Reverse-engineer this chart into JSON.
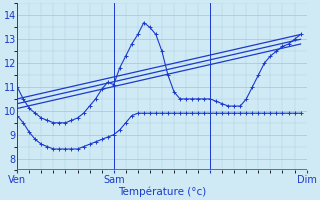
{
  "xlabel": "Température (°c)",
  "ylim": [
    7.5,
    14.5
  ],
  "xlim": [
    0,
    48
  ],
  "yticks": [
    8,
    9,
    10,
    11,
    12,
    13,
    14
  ],
  "xtick_positions": [
    0,
    16,
    32,
    48
  ],
  "xtick_labels": [
    "Ven",
    "Sam",
    "",
    "Dim"
  ],
  "vline_positions": [
    0,
    16,
    32
  ],
  "background_color": "#d0eaf5",
  "grid_color": "#b8d8e8",
  "line_color": "#1a3acc",
  "series": [
    {
      "x": [
        0,
        1,
        2,
        3,
        4,
        5,
        6,
        7,
        8,
        9,
        10,
        11,
        12,
        13,
        14,
        15,
        16,
        17,
        18,
        19,
        20,
        21,
        22,
        23,
        24,
        25,
        26,
        27,
        28,
        29,
        30,
        31,
        32,
        33,
        34,
        35,
        36,
        37,
        38,
        39,
        40,
        41,
        42,
        43,
        44,
        45,
        46,
        47
      ],
      "y": [
        9.8,
        9.5,
        9.1,
        8.8,
        8.6,
        8.5,
        8.4,
        8.4,
        8.4,
        8.4,
        8.4,
        8.5,
        8.6,
        8.7,
        8.8,
        8.9,
        9.0,
        9.2,
        9.5,
        9.8,
        9.9,
        9.9,
        9.9,
        9.9,
        9.9,
        9.9,
        9.9,
        9.9,
        9.9,
        9.9,
        9.9,
        9.9,
        9.9,
        9.9,
        9.9,
        9.9,
        9.9,
        9.9,
        9.9,
        9.9,
        9.9,
        9.9,
        9.9,
        9.9,
        9.9,
        9.9,
        9.9,
        9.9
      ],
      "markers": true
    },
    {
      "x": [
        0,
        47
      ],
      "y": [
        10.1,
        12.8
      ],
      "markers": false
    },
    {
      "x": [
        0,
        47
      ],
      "y": [
        10.3,
        13.0
      ],
      "markers": false
    },
    {
      "x": [
        0,
        47
      ],
      "y": [
        10.5,
        13.2
      ],
      "markers": false
    },
    {
      "x": [
        0,
        1,
        2,
        3,
        4,
        5,
        6,
        7,
        8,
        9,
        10,
        11,
        12,
        13,
        14,
        15,
        16,
        17,
        18,
        19,
        20,
        21,
        22,
        23,
        24,
        25,
        26,
        27,
        28,
        29,
        30,
        31,
        32,
        33,
        34,
        35,
        36,
        37,
        38,
        39,
        40,
        41,
        42,
        43,
        44,
        45,
        46,
        47
      ],
      "y": [
        11.0,
        10.5,
        10.1,
        9.9,
        9.7,
        9.6,
        9.5,
        9.5,
        9.5,
        9.6,
        9.7,
        9.9,
        10.2,
        10.5,
        10.9,
        11.2,
        11.1,
        11.8,
        12.3,
        12.8,
        13.2,
        13.7,
        13.5,
        13.2,
        12.5,
        11.5,
        10.8,
        10.5,
        10.5,
        10.5,
        10.5,
        10.5,
        10.5,
        10.4,
        10.3,
        10.2,
        10.2,
        10.2,
        10.5,
        11.0,
        11.5,
        12.0,
        12.3,
        12.5,
        12.7,
        12.8,
        13.0,
        13.2
      ],
      "markers": true
    }
  ]
}
